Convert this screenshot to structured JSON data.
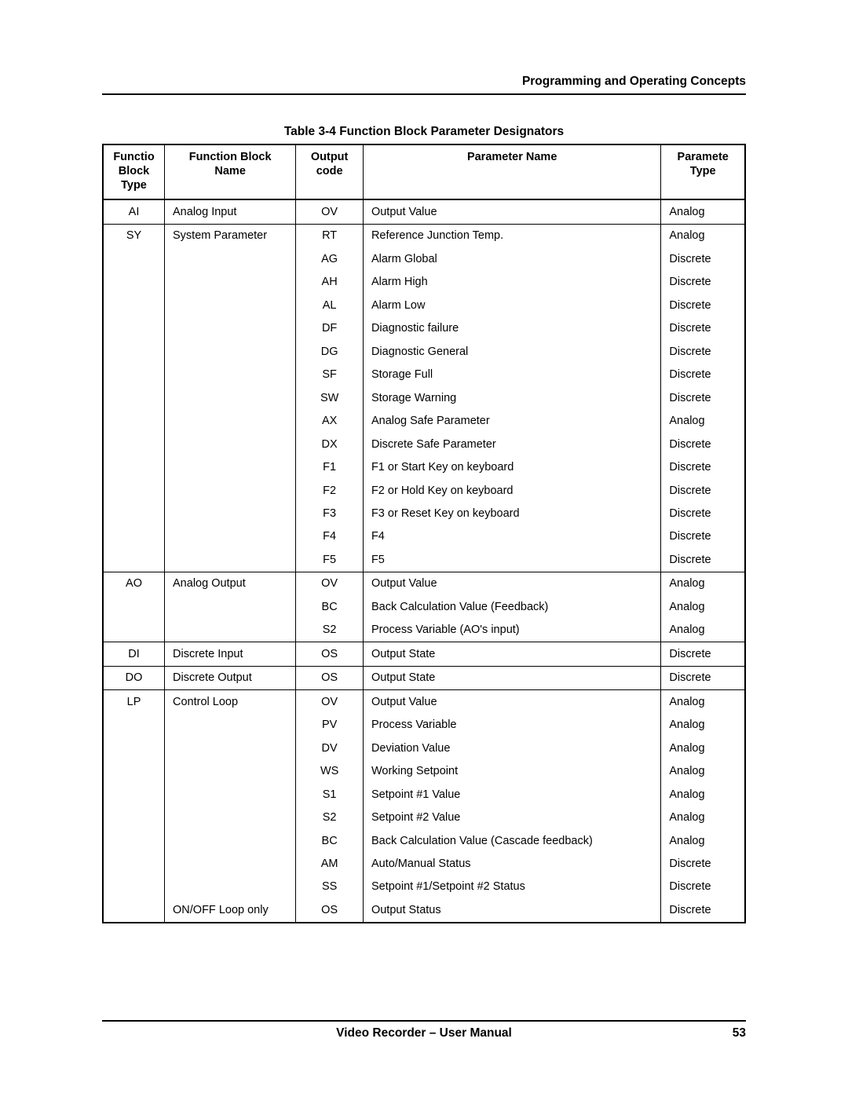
{
  "section_header": "Programming and Operating Concepts",
  "table_caption": "Table 3-4   Function Block Parameter Designators",
  "columns": {
    "c1": "Functio\nBlock\nType",
    "c2": "Function Block\nName",
    "c3": "Output\ncode",
    "c4": "Parameter Name",
    "c5": "Paramete\nType"
  },
  "rows": [
    {
      "fbt": "AI",
      "fbn": "Analog Input",
      "code": "OV",
      "pname": "Output Value",
      "ptype": "Analog",
      "sep": true
    },
    {
      "fbt": "SY",
      "fbn": "System Parameter",
      "code": "RT",
      "pname": "Reference Junction Temp.",
      "ptype": "Analog",
      "sep": true
    },
    {
      "fbt": "",
      "fbn": "",
      "code": "AG",
      "pname": "Alarm Global",
      "ptype": "Discrete",
      "sep": false
    },
    {
      "fbt": "",
      "fbn": "",
      "code": "AH",
      "pname": "Alarm High",
      "ptype": "Discrete",
      "sep": false
    },
    {
      "fbt": "",
      "fbn": "",
      "code": "AL",
      "pname": "Alarm Low",
      "ptype": "Discrete",
      "sep": false
    },
    {
      "fbt": "",
      "fbn": "",
      "code": "DF",
      "pname": "Diagnostic failure",
      "ptype": "Discrete",
      "sep": false
    },
    {
      "fbt": "",
      "fbn": "",
      "code": "DG",
      "pname": "Diagnostic General",
      "ptype": "Discrete",
      "sep": false
    },
    {
      "fbt": "",
      "fbn": "",
      "code": "SF",
      "pname": "Storage Full",
      "ptype": "Discrete",
      "sep": false
    },
    {
      "fbt": "",
      "fbn": "",
      "code": "SW",
      "pname": "Storage Warning",
      "ptype": "Discrete",
      "sep": false
    },
    {
      "fbt": "",
      "fbn": "",
      "code": "AX",
      "pname": "Analog Safe Parameter",
      "ptype": "Analog",
      "sep": false
    },
    {
      "fbt": "",
      "fbn": "",
      "code": "DX",
      "pname": "Discrete Safe Parameter",
      "ptype": "Discrete",
      "sep": false
    },
    {
      "fbt": "",
      "fbn": "",
      "code": "F1",
      "pname": "F1 or Start Key on keyboard",
      "ptype": "Discrete",
      "sep": false
    },
    {
      "fbt": "",
      "fbn": "",
      "code": "F2",
      "pname": "F2 or Hold Key on keyboard",
      "ptype": "Discrete",
      "sep": false
    },
    {
      "fbt": "",
      "fbn": "",
      "code": "F3",
      "pname": "F3 or Reset Key on keyboard",
      "ptype": "Discrete",
      "sep": false
    },
    {
      "fbt": "",
      "fbn": "",
      "code": "F4",
      "pname": "F4",
      "ptype": "Discrete",
      "sep": false
    },
    {
      "fbt": "",
      "fbn": "",
      "code": "F5",
      "pname": "F5",
      "ptype": "Discrete",
      "sep": false
    },
    {
      "fbt": "AO",
      "fbn": "Analog Output",
      "code": "OV",
      "pname": "Output Value",
      "ptype": "Analog",
      "sep": true
    },
    {
      "fbt": "",
      "fbn": "",
      "code": "BC",
      "pname": "Back Calculation Value (Feedback)",
      "ptype": "Analog",
      "sep": false
    },
    {
      "fbt": "",
      "fbn": "",
      "code": "S2",
      "pname": "Process Variable (AO's input)",
      "ptype": "Analog",
      "sep": false
    },
    {
      "fbt": "DI",
      "fbn": "Discrete Input",
      "code": "OS",
      "pname": "Output State",
      "ptype": "Discrete",
      "sep": true
    },
    {
      "fbt": "DO",
      "fbn": "Discrete Output",
      "code": "OS",
      "pname": "Output State",
      "ptype": "Discrete",
      "sep": true
    },
    {
      "fbt": "LP",
      "fbn": "Control Loop",
      "code": "OV",
      "pname": "Output Value",
      "ptype": "Analog",
      "sep": true
    },
    {
      "fbt": "",
      "fbn": "",
      "code": "PV",
      "pname": "Process Variable",
      "ptype": "Analog",
      "sep": false
    },
    {
      "fbt": "",
      "fbn": "",
      "code": "DV",
      "pname": "Deviation Value",
      "ptype": "Analog",
      "sep": false
    },
    {
      "fbt": "",
      "fbn": "",
      "code": "WS",
      "pname": "Working Setpoint",
      "ptype": "Analog",
      "sep": false
    },
    {
      "fbt": "",
      "fbn": "",
      "code": "S1",
      "pname": "Setpoint #1 Value",
      "ptype": "Analog",
      "sep": false
    },
    {
      "fbt": "",
      "fbn": "",
      "code": "S2",
      "pname": "Setpoint #2 Value",
      "ptype": "Analog",
      "sep": false
    },
    {
      "fbt": "",
      "fbn": "",
      "code": "BC",
      "pname": "Back Calculation Value (Cascade feedback)",
      "ptype": "Analog",
      "sep": false
    },
    {
      "fbt": "",
      "fbn": "",
      "code": "AM",
      "pname": "Auto/Manual Status",
      "ptype": "Discrete",
      "sep": false
    },
    {
      "fbt": "",
      "fbn": "",
      "code": "SS",
      "pname": "Setpoint #1/Setpoint #2 Status",
      "ptype": "Discrete",
      "sep": false
    },
    {
      "fbt": "",
      "fbn": "ON/OFF Loop only",
      "code": "OS",
      "pname": "Output Status",
      "ptype": "Discrete",
      "sep": false
    }
  ],
  "footer": {
    "manual": "Video Recorder – User Manual",
    "page": "53"
  }
}
